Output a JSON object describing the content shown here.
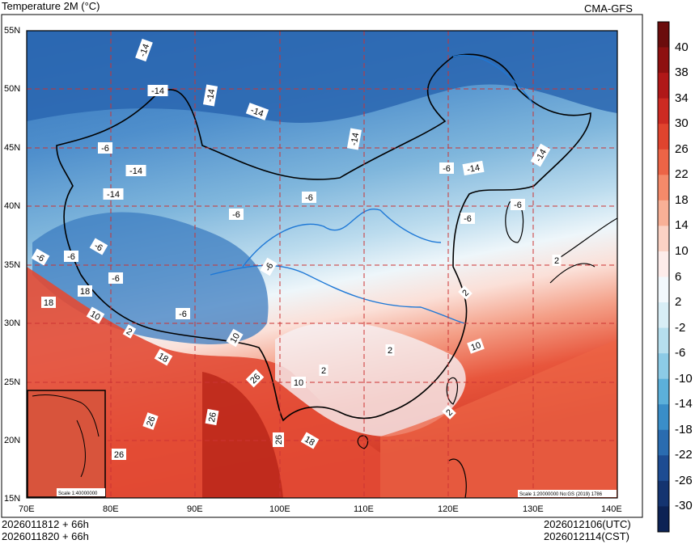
{
  "title": "Temperature  2M (°C)",
  "model": "CMA-GFS",
  "run_times": [
    "2026011812 + 66h",
    "2026011820 + 66h"
  ],
  "valid_times": [
    "2026012106(UTC)",
    "2026012114(CST)"
  ],
  "lat_labels": [
    "55N",
    "50N",
    "45N",
    "40N",
    "35N",
    "30N",
    "25N",
    "20N",
    "15N"
  ],
  "lon_labels": [
    "70E",
    "80E",
    "90E",
    "100E",
    "110E",
    "120E",
    "130E",
    "140E"
  ],
  "colorbar_labels": [
    "40",
    "38",
    "34",
    "30",
    "26",
    "22",
    "18",
    "14",
    "10",
    "6",
    "2",
    "-2",
    "-6",
    "-10",
    "-14",
    "-18",
    "-22",
    "-26",
    "-30"
  ],
  "colorbar_colors": [
    "#6b0c0c",
    "#8e1010",
    "#b01818",
    "#cc2a22",
    "#e0442e",
    "#ec6446",
    "#f48a6a",
    "#f8b096",
    "#fbd2c4",
    "#fdecea",
    "#f2f8fc",
    "#d8eef6",
    "#b6dfee",
    "#8ccbe6",
    "#5cb0da",
    "#3a8ec8",
    "#2a6cb0",
    "#1d4c92",
    "#143470",
    "#0c2254"
  ],
  "contour_labels": [
    "-14",
    "-14",
    "-14",
    "-14",
    "-14",
    "-14",
    "-14",
    "-14",
    "-14",
    "-6",
    "-6",
    "-6",
    "-6",
    "-6",
    "-6",
    "-6",
    "-6",
    "-6",
    "-6",
    "-6",
    "-6",
    "18",
    "18",
    "10",
    "10",
    "10",
    "10",
    "2",
    "2",
    "2",
    "2",
    "2",
    "2",
    "26",
    "26",
    "26",
    "26",
    "26",
    "18",
    "18"
  ],
  "scale_main": "Scale 1:20000000 No:GS (2019) 1786",
  "scale_inset": "Scale 1:40000000"
}
